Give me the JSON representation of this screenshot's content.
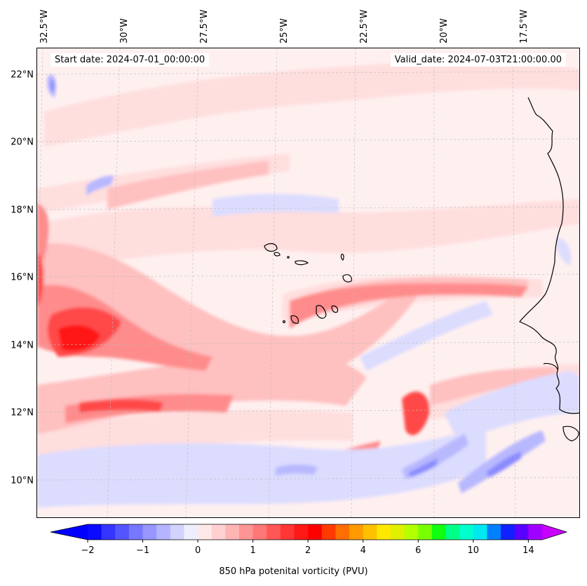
{
  "header": {
    "start_date": "Start date: 2024-07-01_00:00:00",
    "valid_date": "Valid_date: 2024-07-03T21:00:00.00"
  },
  "axes": {
    "lon_labels": [
      "32.5°W",
      "30°W",
      "27.5°W",
      "25°W",
      "22.5°W",
      "20°W",
      "17.5°W"
    ],
    "lon_values": [
      -32.5,
      -30,
      -27.5,
      -25,
      -22.5,
      -20,
      -17.5
    ],
    "lat_labels": [
      "22°N",
      "20°N",
      "18°N",
      "16°N",
      "14°N",
      "12°N",
      "10°N"
    ],
    "lat_values": [
      22,
      20,
      18,
      16,
      14,
      12,
      10
    ],
    "lon_range": [
      -32.5,
      -15.5
    ],
    "lat_range": [
      8.9,
      22.8
    ]
  },
  "colorbar": {
    "label": "850 hPa potenital vorticity (PVU)",
    "tick_labels": [
      "−2",
      "−1",
      "0",
      "1",
      "2",
      "4",
      "6",
      "10",
      "14"
    ],
    "colors": [
      "#0a0aff",
      "#3535ff",
      "#5555ff",
      "#7777ff",
      "#9797ff",
      "#b4b4ff",
      "#d2d2ff",
      "#eeeeff",
      "#ffe8e8",
      "#ffd0d0",
      "#ffb4b4",
      "#ff9494",
      "#ff7777",
      "#ff5656",
      "#ff3636",
      "#ff1818",
      "#ff0000",
      "#ff3a00",
      "#ff6e00",
      "#ff9a00",
      "#ffc000",
      "#ffe800",
      "#e0f000",
      "#b4ff00",
      "#78ff00",
      "#10ff10",
      "#00ff88",
      "#00ffcc",
      "#00e8f0",
      "#0080ff",
      "#1020ff",
      "#5a00ff",
      "#a000ff"
    ],
    "under_color": "#0000ff",
    "over_color": "#c800ff"
  },
  "field": {
    "background_color": "#fff0f0",
    "islands_label_hidden": ""
  }
}
